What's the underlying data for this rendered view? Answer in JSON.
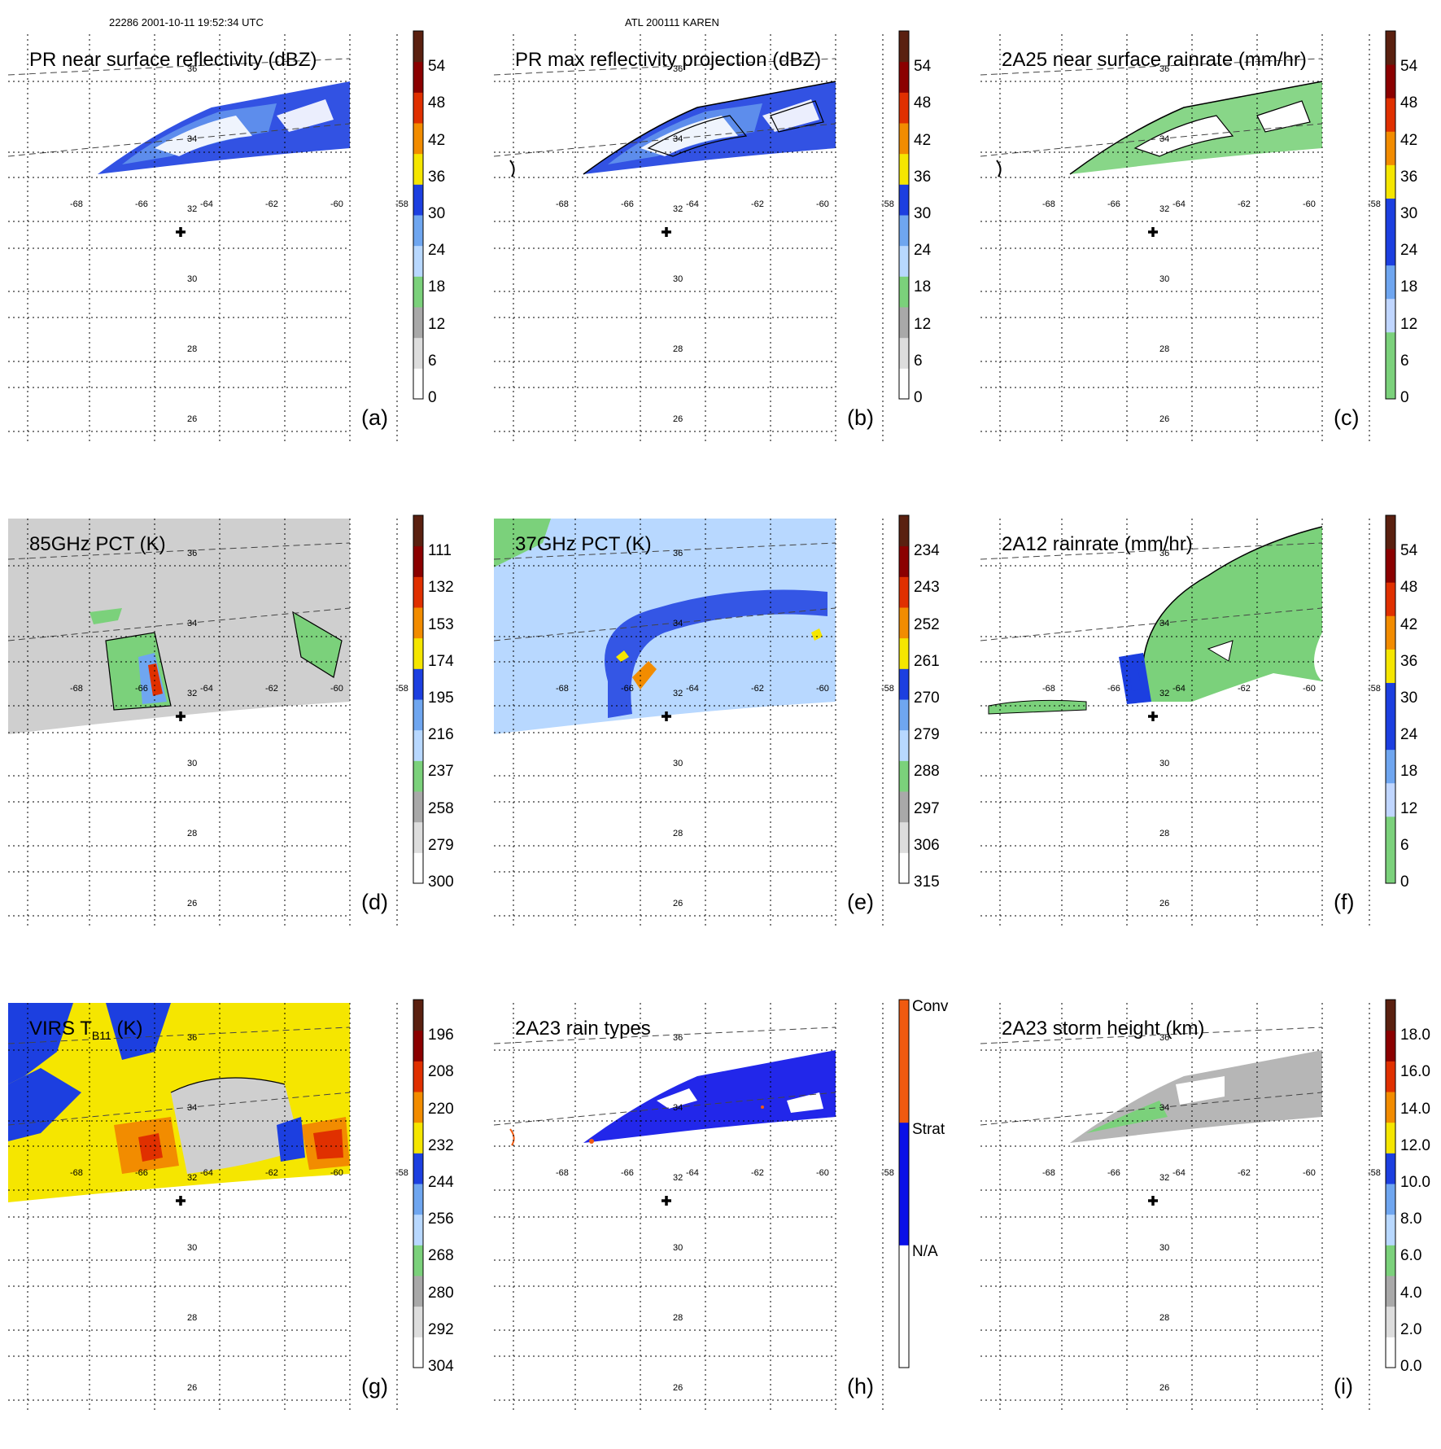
{
  "header": {
    "orbit_info": "22286 2001-10-11 19:52:34 UTC",
    "storm_info": "ATL 200111 KAREN"
  },
  "lon_labels": [
    "-68",
    "-66",
    "-64",
    "-62",
    "-60",
    "-58"
  ],
  "lat_labels": [
    "36",
    "34",
    "32",
    "30",
    "28",
    "26"
  ],
  "panels": [
    {
      "id": "a",
      "title": "PR near surface reflectivity (dBZ)",
      "label": "(a)",
      "colorbar": [
        "0",
        "6",
        "12",
        "18",
        "24",
        "30",
        "36",
        "42",
        "48",
        "54"
      ],
      "palette": [
        "#ffffff",
        "#dddddd",
        "#a9a9a9",
        "#7bd17b",
        "#b8d8ff",
        "#6fa6f0",
        "#1c3fe0",
        "#f5e600",
        "#f28c00",
        "#e03000",
        "#8b0000",
        "#5a2010"
      ],
      "style": "swath",
      "fill": "blue",
      "contours": false
    },
    {
      "id": "b",
      "title": "PR max reflectivity projection (dBZ)",
      "label": "(b)",
      "colorbar": [
        "0",
        "6",
        "12",
        "18",
        "24",
        "30",
        "36",
        "42",
        "48",
        "54"
      ],
      "palette": [
        "#ffffff",
        "#dddddd",
        "#a9a9a9",
        "#7bd17b",
        "#b8d8ff",
        "#6fa6f0",
        "#1c3fe0",
        "#f5e600",
        "#f28c00",
        "#e03000",
        "#8b0000",
        "#5a2010"
      ],
      "style": "swath",
      "fill": "blue",
      "contours": true
    },
    {
      "id": "c",
      "title": "2A25 near surface rainrate (mm/hr)",
      "label": "(c)",
      "colorbar": [
        "0",
        "6",
        "12",
        "18",
        "24",
        "30",
        "36",
        "42",
        "48",
        "54"
      ],
      "palette": [
        "#7bd17b",
        "#7bd17b",
        "#c0d6ff",
        "#6fa6f0",
        "#1c3fe0",
        "#1c3fe0",
        "#f5e600",
        "#f28c00",
        "#e03000",
        "#8b0000",
        "#5a2010"
      ],
      "style": "swath",
      "fill": "green",
      "contours": true
    },
    {
      "id": "d",
      "title": "85GHz PCT (K)",
      "label": "(d)",
      "colorbar": [
        "300",
        "279",
        "258",
        "237",
        "216",
        "195",
        "174",
        "153",
        "132",
        "111"
      ],
      "palette": [
        "#ffffff",
        "#dddddd",
        "#a9a9a9",
        "#7bd17b",
        "#b8d8ff",
        "#6fa6f0",
        "#1c3fe0",
        "#f5e600",
        "#f28c00",
        "#e03000",
        "#8b0000",
        "#5a2010"
      ],
      "style": "tmi",
      "fill": "lightgray",
      "contours": true
    },
    {
      "id": "e",
      "title": "37GHz PCT (K)",
      "label": "(e)",
      "colorbar": [
        "315",
        "306",
        "297",
        "288",
        "279",
        "270",
        "261",
        "252",
        "243",
        "234"
      ],
      "palette": [
        "#ffffff",
        "#dddddd",
        "#a9a9a9",
        "#7bd17b",
        "#b8d8ff",
        "#6fa6f0",
        "#1c3fe0",
        "#f5e600",
        "#f28c00",
        "#e03000",
        "#8b0000",
        "#5a2010"
      ],
      "style": "tmi",
      "fill": "lightblue",
      "contours": false
    },
    {
      "id": "f",
      "title": "2A12 rainrate (mm/hr)",
      "label": "(f)",
      "colorbar": [
        "0",
        "6",
        "12",
        "18",
        "24",
        "30",
        "36",
        "42",
        "48",
        "54"
      ],
      "palette": [
        "#7bd17b",
        "#7bd17b",
        "#c0d6ff",
        "#6fa6f0",
        "#1c3fe0",
        "#1c3fe0",
        "#f5e600",
        "#f28c00",
        "#e03000",
        "#8b0000",
        "#5a2010"
      ],
      "style": "arc",
      "fill": "green",
      "contours": true
    },
    {
      "id": "g",
      "title": "VIRS T",
      "title_sub": "B11",
      "title_end": " (K)",
      "label": "(g)",
      "colorbar": [
        "304",
        "292",
        "280",
        "268",
        "256",
        "244",
        "232",
        "220",
        "208",
        "196"
      ],
      "palette": [
        "#ffffff",
        "#dddddd",
        "#a9a9a9",
        "#7bd17b",
        "#b8d8ff",
        "#6fa6f0",
        "#1c3fe0",
        "#f5e600",
        "#f28c00",
        "#e03000",
        "#8b0000",
        "#5a2010"
      ],
      "style": "virs",
      "fill": "yellow",
      "contours": true
    },
    {
      "id": "h",
      "title": "2A23 rain types",
      "label": "(h)",
      "colorbar_cat": [
        "N/A",
        "Strat",
        "Conv"
      ],
      "palette": [
        "#ffffff",
        "#0a10e8",
        "#f05a10"
      ],
      "style": "swath",
      "fill": "solidblue",
      "contours": false
    },
    {
      "id": "i",
      "title": "2A23 storm height (km)",
      "label": "(i)",
      "colorbar": [
        "0.0",
        "2.0",
        "4.0",
        "6.0",
        "8.0",
        "10.0",
        "12.0",
        "14.0",
        "16.0",
        "18.0"
      ],
      "palette": [
        "#ffffff",
        "#dddddd",
        "#a9a9a9",
        "#7bd17b",
        "#b8d8ff",
        "#6fa6f0",
        "#1c3fe0",
        "#f5e600",
        "#f28c00",
        "#e03000",
        "#8b0000",
        "#5a2010"
      ],
      "style": "swath",
      "fill": "gray",
      "contours": false
    }
  ]
}
